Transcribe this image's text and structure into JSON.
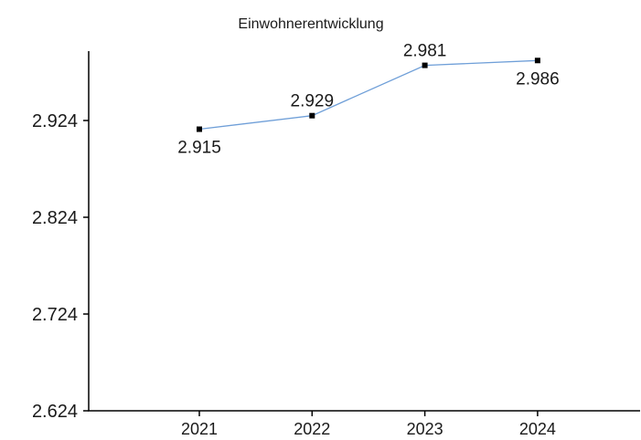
{
  "chart_data": {
    "type": "line",
    "title": "Einwohnerentwicklung",
    "xlabel": "",
    "ylabel": "",
    "categories": [
      "2021",
      "2022",
      "2023",
      "2024"
    ],
    "y_ticks": [
      2.624,
      2.724,
      2.824,
      2.924
    ],
    "y_tick_labels": [
      "2.624",
      "2.724",
      "2.824",
      "2.924"
    ],
    "ylim": [
      2.624,
      2.998
    ],
    "grid": false,
    "legend": "none",
    "series": [
      {
        "values": [
          2.915,
          2.929,
          2.981,
          2.986
        ],
        "data_labels": [
          "2.915",
          "2.929",
          "2.981",
          "2.986"
        ],
        "label_positions": [
          "below",
          "above",
          "above",
          "below"
        ],
        "color": "#6f9fd8"
      }
    ]
  }
}
